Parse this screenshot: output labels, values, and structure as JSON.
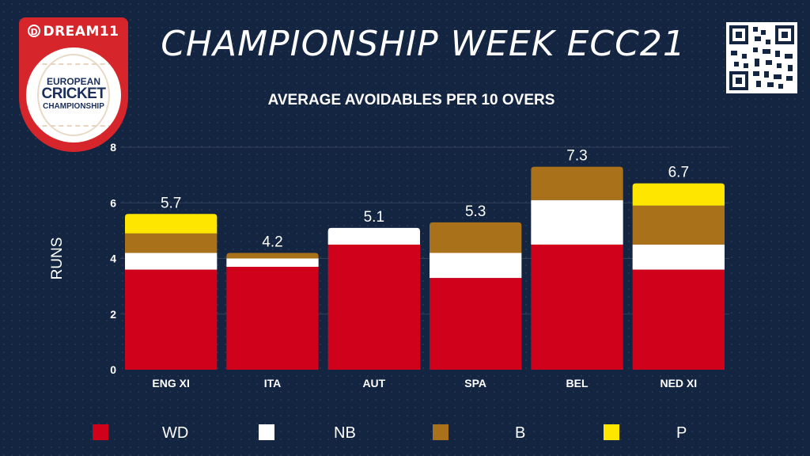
{
  "header": {
    "title": "CHAMPIONSHIP WEEK ECC21",
    "logo": {
      "brand": "DREAM11",
      "brand_icon": "D",
      "line1": "EUROPEAN",
      "line2": "CRICKET",
      "line3": "CHAMPIONSHIP",
      "color": "#d7262b"
    },
    "qr_icon": "qr-code-icon"
  },
  "chart_data": {
    "type": "bar",
    "stacked": true,
    "title": "AVERAGE AVOIDABLES PER 10 OVERS",
    "xlabel": "",
    "ylabel": "RUNS",
    "ylim": [
      0,
      8
    ],
    "yticks": [
      "0",
      "2",
      "4",
      "6",
      "8"
    ],
    "grid": true,
    "legend_position": "bottom",
    "categories": [
      "ENG XI",
      "ITA",
      "AUT",
      "SPA",
      "BEL",
      "NED XI"
    ],
    "totals": [
      "5.7",
      "4.2",
      "5.1",
      "5.3",
      "7.3",
      "6.7"
    ],
    "series": [
      {
        "name": "WD",
        "color": "#d0021b",
        "values": [
          3.6,
          3.7,
          4.5,
          3.3,
          4.5,
          3.6
        ]
      },
      {
        "name": "NB",
        "color": "#ffffff",
        "values": [
          0.6,
          0.3,
          0.6,
          0.9,
          1.6,
          0.9
        ]
      },
      {
        "name": "B",
        "color": "#a9711a",
        "values": [
          0.7,
          0.2,
          0.0,
          1.1,
          1.2,
          1.4
        ]
      },
      {
        "name": "P",
        "color": "#ffe600",
        "values": [
          0.7,
          0.0,
          0.0,
          0.0,
          0.0,
          0.8
        ]
      }
    ]
  }
}
